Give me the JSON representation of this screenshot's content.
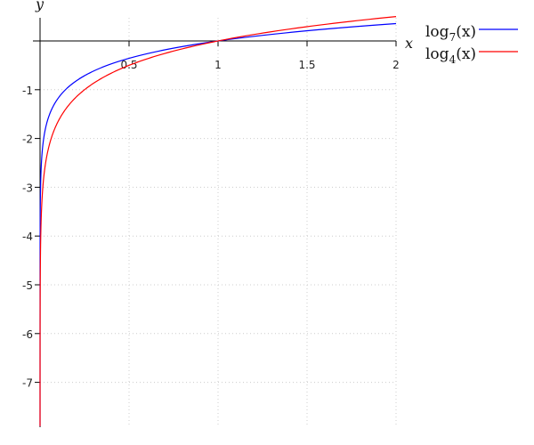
{
  "chart_data": {
    "type": "line",
    "title": "",
    "xlabel": "x",
    "ylabel": "y",
    "xlim": [
      0,
      2
    ],
    "ylim": [
      -7.9,
      0.5
    ],
    "x_ticks": [
      "0.5",
      "1",
      "1.5",
      "2"
    ],
    "y_ticks": [
      "-1",
      "-2",
      "-3",
      "-4",
      "-5",
      "-6",
      "-7"
    ],
    "grid": true,
    "legend_position": "top-right outside",
    "series": [
      {
        "name": "log7(x)",
        "name_base": "log",
        "name_sub": "7",
        "name_arg": "(x)",
        "base": 7,
        "color": "#0000ff"
      },
      {
        "name": "log4(x)",
        "name_base": "log",
        "name_sub": "4",
        "name_arg": "(x)",
        "base": 4,
        "color": "#ff0000"
      }
    ]
  }
}
